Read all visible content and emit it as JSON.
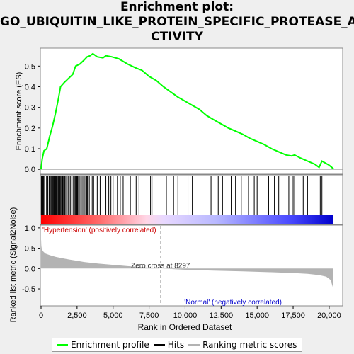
{
  "title_lines": [
    "Enrichment plot:",
    "GO_UBIQUITIN_LIKE_PROTEIN_SPECIFIC_PROTEASE_A",
    "CTIVITY"
  ],
  "chart_data": {
    "type": "line",
    "title": "Enrichment plot: GO_UBIQUITIN_LIKE_PROTEIN_SPECIFIC_PROTEASE_ACTIVITY",
    "top_panel": {
      "ylabel": "Enrichment score (ES)",
      "ylim": [
        -0.02,
        0.58
      ],
      "yticks": [
        0.0,
        0.1,
        0.2,
        0.3,
        0.4,
        0.5
      ],
      "series_name": "Enrichment profile",
      "color": "#00ff00",
      "points": [
        [
          0,
          0.0
        ],
        [
          80,
          0.05
        ],
        [
          200,
          0.09
        ],
        [
          400,
          0.1
        ],
        [
          600,
          0.16
        ],
        [
          800,
          0.21
        ],
        [
          1000,
          0.27
        ],
        [
          1200,
          0.34
        ],
        [
          1350,
          0.4
        ],
        [
          1600,
          0.42
        ],
        [
          1900,
          0.44
        ],
        [
          2200,
          0.46
        ],
        [
          2400,
          0.5
        ],
        [
          2700,
          0.51
        ],
        [
          3000,
          0.53
        ],
        [
          3200,
          0.545
        ],
        [
          3400,
          0.55
        ],
        [
          3600,
          0.56
        ],
        [
          3900,
          0.545
        ],
        [
          4300,
          0.54
        ],
        [
          4500,
          0.55
        ],
        [
          4900,
          0.545
        ],
        [
          5400,
          0.535
        ],
        [
          6000,
          0.51
        ],
        [
          6600,
          0.49
        ],
        [
          7000,
          0.48
        ],
        [
          7500,
          0.45
        ],
        [
          8000,
          0.43
        ],
        [
          8500,
          0.4
        ],
        [
          9000,
          0.375
        ],
        [
          9500,
          0.35
        ],
        [
          10000,
          0.33
        ],
        [
          10500,
          0.31
        ],
        [
          11000,
          0.29
        ],
        [
          11500,
          0.26
        ],
        [
          12000,
          0.24
        ],
        [
          12500,
          0.22
        ],
        [
          13000,
          0.2
        ],
        [
          13500,
          0.185
        ],
        [
          14000,
          0.17
        ],
        [
          14500,
          0.15
        ],
        [
          15000,
          0.135
        ],
        [
          15500,
          0.12
        ],
        [
          16000,
          0.1
        ],
        [
          16500,
          0.085
        ],
        [
          17000,
          0.07
        ],
        [
          17400,
          0.065
        ],
        [
          17600,
          0.07
        ],
        [
          18000,
          0.055
        ],
        [
          18500,
          0.04
        ],
        [
          19000,
          0.025
        ],
        [
          19300,
          0.01
        ],
        [
          19500,
          0.04
        ],
        [
          20000,
          0.02
        ],
        [
          20300,
          0.003
        ]
      ]
    },
    "hits_panel": {
      "positions": [
        20,
        60,
        110,
        150,
        200,
        380,
        420,
        470,
        560,
        600,
        650,
        720,
        780,
        830,
        880,
        920,
        960,
        1010,
        1050,
        1090,
        1140,
        1200,
        1250,
        1300,
        1360,
        1420,
        1500,
        1560,
        1650,
        1720,
        1800,
        1880,
        1960,
        2050,
        2150,
        2250,
        2350,
        2400,
        2450,
        2480,
        2530,
        2600,
        2700,
        2800,
        2900,
        3000,
        3100,
        3150,
        3200,
        3250,
        3350,
        3550,
        3650,
        3900,
        4100,
        4300,
        4500,
        4700,
        4850,
        5000,
        5300,
        5500,
        5700,
        6200,
        6600,
        6800,
        7600,
        7700,
        8700,
        9200,
        9500,
        10200,
        10500,
        11800,
        12300,
        12600,
        13200,
        13500,
        13900,
        14400,
        14800,
        15000,
        15800,
        16200,
        16500,
        17200,
        17500,
        17600,
        18200,
        18500,
        19300,
        19400,
        19500
      ]
    },
    "bottom_panel": {
      "ylabel": "Ranked list metric (Signal2Noise)",
      "xlabel": "Rank in Ordered Dataset",
      "ylim": [
        -0.9,
        1.05
      ],
      "yticks": [
        -0.5,
        0.0,
        0.5,
        1.0
      ],
      "xlim": [
        0,
        20800
      ],
      "xticks": [
        0,
        2500,
        5000,
        7500,
        10000,
        12500,
        15000,
        17500,
        20000
      ],
      "zero_cross": 8297,
      "zero_cross_label": "Zero cross at 8297",
      "pos_label": "'Hypertension' (positively correlated)",
      "neg_label": "'Normal' (negatively correlated)",
      "metric_points": [
        [
          0,
          0.72
        ],
        [
          20,
          0.55
        ],
        [
          60,
          0.47
        ],
        [
          150,
          0.42
        ],
        [
          300,
          0.37
        ],
        [
          600,
          0.33
        ],
        [
          1000,
          0.29
        ],
        [
          1500,
          0.25
        ],
        [
          2000,
          0.22
        ],
        [
          2500,
          0.19
        ],
        [
          3000,
          0.16
        ],
        [
          3500,
          0.14
        ],
        [
          4000,
          0.12
        ],
        [
          5000,
          0.09
        ],
        [
          6000,
          0.06
        ],
        [
          7000,
          0.035
        ],
        [
          8297,
          0.0
        ],
        [
          10000,
          -0.03
        ],
        [
          12000,
          -0.05
        ],
        [
          14000,
          -0.07
        ],
        [
          16000,
          -0.09
        ],
        [
          17500,
          -0.11
        ],
        [
          18500,
          -0.13
        ],
        [
          19300,
          -0.16
        ],
        [
          19800,
          -0.2
        ],
        [
          20100,
          -0.28
        ],
        [
          20250,
          -0.45
        ],
        [
          20300,
          -0.8
        ]
      ]
    },
    "legend": [
      {
        "label": "Enrichment profile",
        "color": "#00ff00"
      },
      {
        "label": "Hits",
        "color": "#000000"
      },
      {
        "label": "Ranking metric scores",
        "color": "#b3b3b3"
      }
    ]
  }
}
